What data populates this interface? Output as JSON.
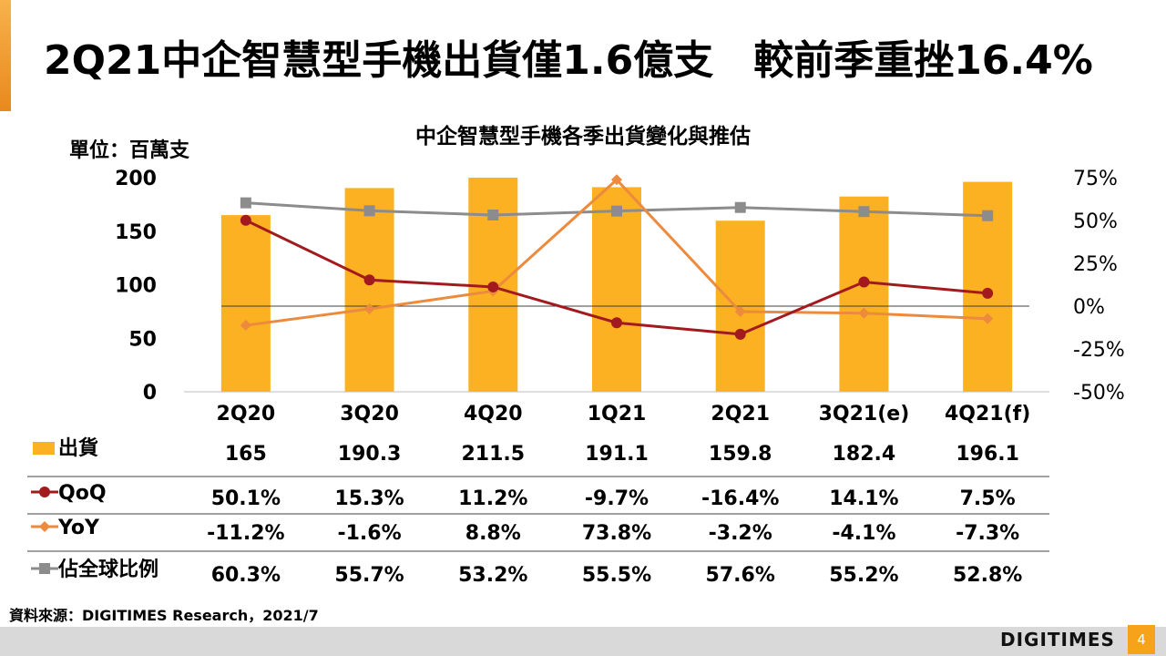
{
  "slide": {
    "title": "2Q21中企智慧型手機出貨僅1.6億支　較前季重挫16.4%",
    "source": "資料來源：DIGITIMES Research，2021/7",
    "logo": "DIGITIMES",
    "page_number": "4"
  },
  "colors": {
    "accent": "#f7a21b",
    "bar": "#fbb121",
    "qoq": "#a31a1e",
    "yoy": "#ec8a3d",
    "share": "#8c8c8c"
  },
  "chart_data": {
    "type": "bar",
    "title": "中企智慧型手機各季出貨變化與推估",
    "unit_label": "單位：百萬支",
    "categories": [
      "2Q20",
      "3Q20",
      "4Q20",
      "1Q21",
      "2Q21",
      "3Q21(e)",
      "4Q21(f)"
    ],
    "y_left": {
      "min": 0,
      "max": 200,
      "ticks": [
        "0",
        "50",
        "100",
        "150",
        "200"
      ]
    },
    "y_right": {
      "min": -0.5,
      "max": 0.75,
      "ticks": [
        "-50%",
        "-25%",
        "0%",
        "25%",
        "50%",
        "75%"
      ]
    },
    "series": [
      {
        "name": "出貨",
        "type": "bar",
        "axis": "left",
        "values": [
          165,
          190.3,
          211.5,
          191.1,
          159.8,
          182.4,
          196.1
        ],
        "labels": [
          "165",
          "190.3",
          "211.5",
          "191.1",
          "159.8",
          "182.4",
          "196.1"
        ]
      },
      {
        "name": "QoQ",
        "type": "line",
        "axis": "right",
        "values": [
          0.501,
          0.153,
          0.112,
          -0.097,
          -0.164,
          0.141,
          0.075
        ],
        "labels": [
          "50.1%",
          "15.3%",
          "11.2%",
          "-9.7%",
          "-16.4%",
          "14.1%",
          "7.5%"
        ]
      },
      {
        "name": "YoY",
        "type": "line",
        "axis": "right",
        "values": [
          -0.112,
          -0.016,
          0.088,
          0.738,
          -0.032,
          -0.041,
          -0.073
        ],
        "labels": [
          "-11.2%",
          "-1.6%",
          "8.8%",
          "73.8%",
          "-3.2%",
          "-4.1%",
          "-7.3%"
        ]
      },
      {
        "name": "佔全球比例",
        "type": "line",
        "axis": "right",
        "values": [
          0.603,
          0.557,
          0.532,
          0.555,
          0.576,
          0.552,
          0.528
        ],
        "labels": [
          "60.3%",
          "55.7%",
          "53.2%",
          "55.5%",
          "57.6%",
          "55.2%",
          "52.8%"
        ]
      }
    ]
  }
}
